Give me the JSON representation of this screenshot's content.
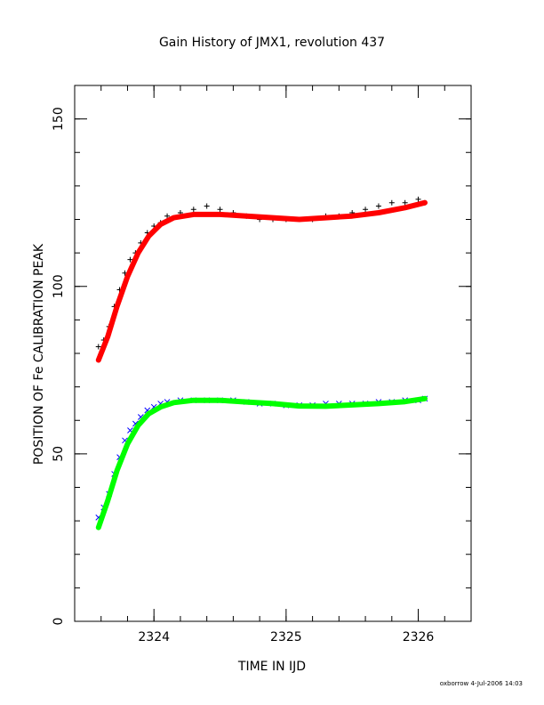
{
  "chart_data": {
    "type": "scatter",
    "title": "Gain History of JMX1, revolution 437",
    "xlabel": "TIME IN IJD",
    "ylabel": "POSITION OF Fe CALIBRATION PEAK",
    "xlim": [
      2323.4,
      2326.4
    ],
    "ylim": [
      0,
      160
    ],
    "x_ticks": [
      2324,
      2325,
      2326
    ],
    "x_tick_labels": [
      "2324",
      "2325",
      "2326"
    ],
    "y_ticks": [
      0,
      50,
      100,
      150
    ],
    "y_tick_labels": [
      "0",
      "50",
      "100",
      "150"
    ],
    "x_minor_step": 0.2,
    "y_minor_step": 10,
    "grid": false,
    "footer": "oxborrow   4-Jul-2006 14:03",
    "series": [
      {
        "role": "measurements",
        "marker": "plus",
        "color": "#000000",
        "x": [
          2323.58,
          2323.62,
          2323.66,
          2323.7,
          2323.74,
          2323.78,
          2323.82,
          2323.86,
          2323.9,
          2323.95,
          2324.0,
          2324.05,
          2324.1,
          2324.2,
          2324.3,
          2324.4,
          2324.5,
          2324.6,
          2324.7,
          2324.8,
          2324.9,
          2325.0,
          2325.1,
          2325.2,
          2325.3,
          2325.4,
          2325.5,
          2325.6,
          2325.7,
          2325.8,
          2325.9,
          2326.0,
          2326.05
        ],
        "y": [
          82,
          84,
          88,
          94,
          99,
          104,
          108,
          110,
          113,
          116,
          118,
          119,
          121,
          122,
          123,
          124,
          123,
          122,
          121,
          120,
          120,
          120,
          120,
          120,
          121,
          121,
          122,
          123,
          124,
          125,
          125,
          126,
          125
        ]
      },
      {
        "role": "fit",
        "marker": "line",
        "color": "#ff0000",
        "x": [
          2323.58,
          2323.65,
          2323.72,
          2323.8,
          2323.88,
          2323.96,
          2324.05,
          2324.15,
          2324.3,
          2324.5,
          2324.7,
          2324.9,
          2325.1,
          2325.3,
          2325.5,
          2325.7,
          2325.9,
          2326.05
        ],
        "y": [
          78,
          85,
          94,
          103,
          110,
          115,
          118.5,
          120.5,
          121.5,
          121.5,
          121,
          120.5,
          120,
          120.5,
          121,
          122,
          123.5,
          125
        ]
      },
      {
        "role": "measurements",
        "marker": "cross",
        "color": "#0000ff",
        "x": [
          2323.58,
          2323.62,
          2323.66,
          2323.7,
          2323.74,
          2323.78,
          2323.82,
          2323.86,
          2323.9,
          2323.95,
          2324.0,
          2324.05,
          2324.1,
          2324.2,
          2324.3,
          2324.4,
          2324.5,
          2324.6,
          2324.7,
          2324.8,
          2324.9,
          2325.0,
          2325.1,
          2325.2,
          2325.3,
          2325.4,
          2325.5,
          2325.6,
          2325.7,
          2325.8,
          2325.9,
          2326.0,
          2326.05
        ],
        "y": [
          31,
          34,
          38,
          44,
          49,
          54,
          57,
          59,
          61,
          63,
          64,
          65,
          65.5,
          66,
          66,
          66,
          66,
          66,
          65.5,
          65,
          65,
          64.5,
          64.5,
          64.5,
          65,
          65,
          65,
          65,
          65.5,
          65.5,
          66,
          66,
          66.5
        ]
      },
      {
        "role": "fit",
        "marker": "line",
        "color": "#00ff00",
        "x": [
          2323.58,
          2323.65,
          2323.72,
          2323.8,
          2323.88,
          2323.96,
          2324.05,
          2324.15,
          2324.3,
          2324.5,
          2324.7,
          2324.9,
          2325.1,
          2325.3,
          2325.5,
          2325.7,
          2325.9,
          2326.05
        ],
        "y": [
          28,
          36,
          45,
          53,
          58.5,
          62,
          64,
          65.3,
          66,
          66,
          65.5,
          65,
          64.3,
          64.2,
          64.6,
          65,
          65.6,
          66.5
        ]
      }
    ]
  }
}
